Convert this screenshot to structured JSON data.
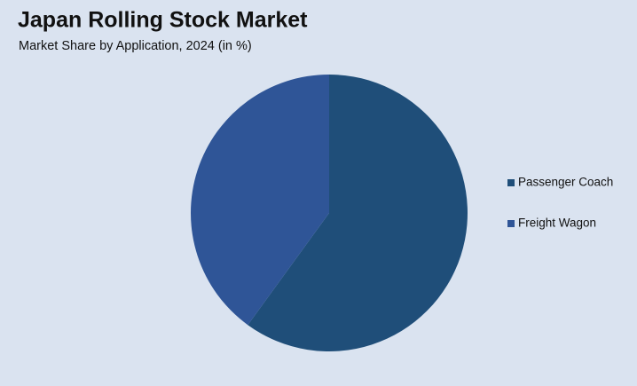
{
  "chart_data": {
    "type": "pie",
    "title": "Japan Rolling Stock Market",
    "subtitle": "Market Share by Application, 2024 (in %)",
    "categories": [
      "Passenger Coach",
      "Freight Wagon"
    ],
    "values": [
      60,
      40
    ],
    "colors": [
      "#1f4e79",
      "#2f5597"
    ],
    "legend": "right"
  }
}
